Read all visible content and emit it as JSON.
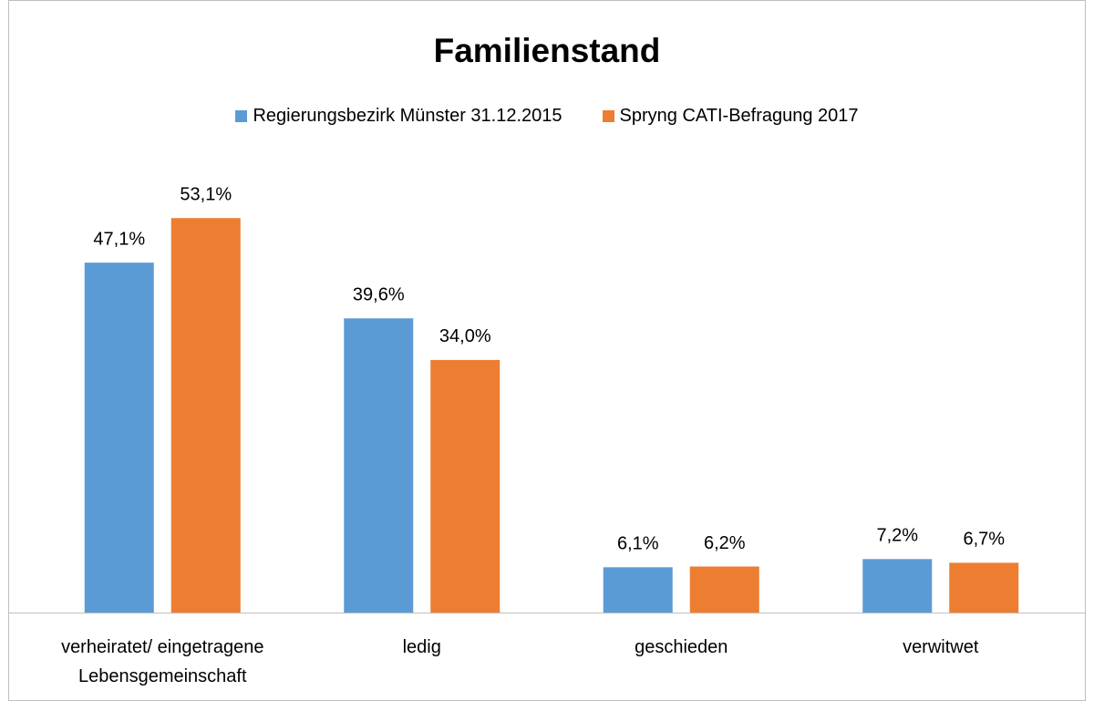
{
  "chart_data": {
    "type": "bar",
    "title": "Familienstand",
    "categories": [
      "verheiratet/ eingetragene Lebensgemeinschaft",
      "ledig",
      "geschieden",
      "verwitwet"
    ],
    "series": [
      {
        "name": "Regierungsbezirk Münster 31.12.2015",
        "color": "#5b9bd5",
        "values": [
          47.1,
          39.6,
          6.1,
          7.2
        ],
        "value_labels": [
          "47,1%",
          "39,6%",
          "6,1%",
          "7,2%"
        ]
      },
      {
        "name": "Spryng CATI-Befragung 2017",
        "color": "#ed7d31",
        "values": [
          53.1,
          34.0,
          6.2,
          6.7
        ],
        "value_labels": [
          "53,1%",
          "34,0%",
          "6,2%",
          "6,7%"
        ]
      }
    ],
    "ylim": [
      0,
      60
    ],
    "legend": "top"
  }
}
